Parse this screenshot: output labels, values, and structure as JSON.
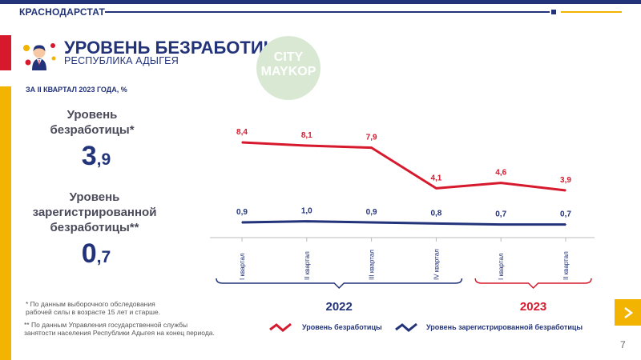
{
  "header": {
    "region": "КРАСНОДАРСТАТ"
  },
  "title": "УРОВЕНЬ БЕЗРАБОТИЦЫ",
  "subtitle": "РЕСПУБЛИКА АДЫГЕЯ",
  "period_label": "ЗА II КВАРТАЛ 2023 ГОДА, %",
  "watermark": "CITY MAYKOP",
  "kpis": [
    {
      "label": "Уровень безработицы*",
      "int": "3",
      "dec": ",9"
    },
    {
      "label": "Уровень зарегистрированной безработицы**",
      "int": "0",
      "dec": ",7"
    }
  ],
  "footnotes": [
    "* По данным выборочного обследования рабочей силы в возрасте 15 лет и старше.",
    "** По данным Управления государственной службы занятости населения Республики Адыгея на конец периода."
  ],
  "page_number": "7",
  "colors": {
    "navy": "#22337a",
    "red": "#d7192d",
    "yellow": "#f2b400"
  },
  "chart_data": {
    "type": "line",
    "categories": [
      "I квартал",
      "II квартал",
      "III квартал",
      "IV квартал",
      "I квартал",
      "II квартал"
    ],
    "year_groups": [
      {
        "label": "2022",
        "from": 0,
        "to": 3,
        "color": "#22337a"
      },
      {
        "label": "2023",
        "from": 4,
        "to": 5,
        "color": "#d7192d"
      }
    ],
    "series": [
      {
        "name": "Уровень безработицы",
        "color": "#d7192d",
        "values": [
          8.4,
          8.1,
          7.9,
          4.1,
          4.6,
          3.9
        ],
        "labels": [
          "8,4",
          "8,1",
          "7,9",
          "4,1",
          "4,6",
          "3,9"
        ]
      },
      {
        "name": "Уровень зарегистрированной безработицы",
        "color": "#22337a",
        "values": [
          0.9,
          1.0,
          0.9,
          0.8,
          0.7,
          0.7
        ],
        "labels": [
          "0,9",
          "1,0",
          "0,9",
          "0,8",
          "0,7",
          "0,7"
        ]
      }
    ],
    "ylim": [
      0,
      9
    ]
  }
}
